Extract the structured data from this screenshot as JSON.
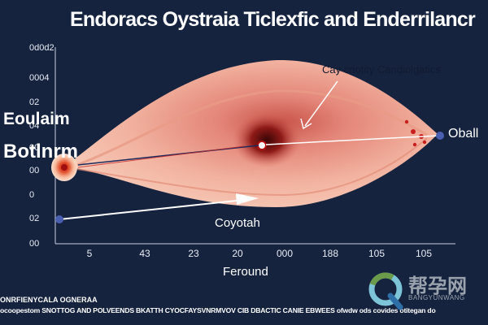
{
  "title": "Endoracs Oystraia Ticlexfic and Enderrilancr",
  "y_axis": {
    "title_lines": [
      "Eoulaim",
      "Botlnrm"
    ],
    "ticks": [
      "0d0d2",
      "0004",
      "02",
      "04",
      "00",
      "00",
      "0",
      "02",
      "00"
    ]
  },
  "x_axis": {
    "title": "Feround",
    "ticks": [
      "5",
      "43",
      "23",
      "20",
      "000",
      "188",
      "105",
      "105"
    ]
  },
  "labels": {
    "top": "Cay criotity Candiolgatics",
    "right": "Oball",
    "bottom": "Coyotah"
  },
  "footer": {
    "line1": "ONRFIENYCALA OGNERAA",
    "line2": "ocoopestom SNOTTOG AND POLVEENDS BKATTH CYOCFAYSVNRMVOV CIB DBACTIC CANIE EBWEES ofwdw ods covides otitegan do"
  },
  "watermark": {
    "text_cn": "帮孕网",
    "text_en": "BANGYUNWANG"
  },
  "colors": {
    "background": "#15233f",
    "tissue_light": "#f6c8b2",
    "tissue_mid": "#eb9a83",
    "tissue_core": "#6e0f10",
    "pointer_white": "#ffffff",
    "accent_blue": "#4b5fb0",
    "accent_red": "#c81e1e"
  }
}
